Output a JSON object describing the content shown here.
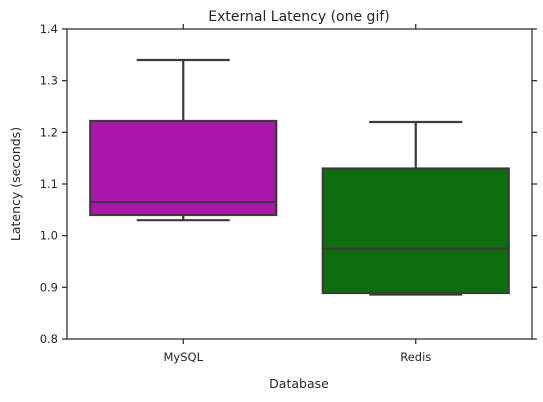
{
  "chart_data": {
    "type": "box",
    "title": "External Latency (one gif)",
    "xlabel": "Database",
    "ylabel": "Latency (seconds)",
    "ylim": [
      0.8,
      1.4
    ],
    "yticks": [
      0.8,
      0.9,
      1.0,
      1.1,
      1.2,
      1.3,
      1.4
    ],
    "ytick_labels": [
      "0.8",
      "0.9",
      "1.0",
      "1.1",
      "1.2",
      "1.3",
      "1.4"
    ],
    "categories": [
      "MySQL",
      "Redis"
    ],
    "boxes": [
      {
        "category": "MySQL",
        "whisker_low": 1.03,
        "q1": 1.04,
        "median": 1.065,
        "q3": 1.222,
        "whisker_high": 1.34,
        "color": "#aa17aa"
      },
      {
        "category": "Redis",
        "whisker_low": 0.886,
        "q1": 0.889,
        "median": 0.975,
        "q3": 1.13,
        "whisker_high": 1.22,
        "color": "#0d6e0d"
      }
    ],
    "grid": false,
    "legend": "none"
  }
}
